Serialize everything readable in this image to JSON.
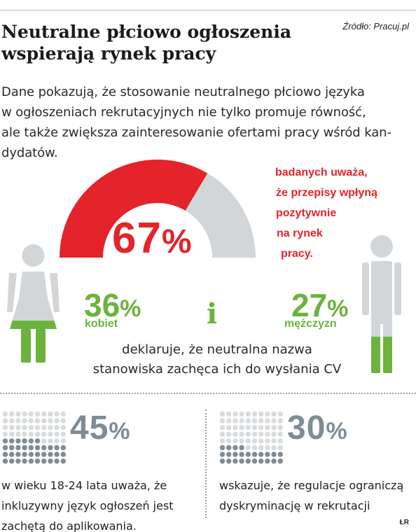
{
  "source": "Źródło: Pracuj.pl",
  "title_lines": [
    "Neutralne płciowo ogłoszenia",
    "wspierają rynek pracy"
  ],
  "intro_lines": [
    "Dane pokazują, że stosowanie neutralnego płciowo języka",
    "w ogłoszeniach rekrutacyjnych nie tylko promuje równość,",
    "ale także zwiększa zainteresowanie ofertami pracy wśród kan-",
    "dydatów."
  ],
  "gauge": {
    "value": 67,
    "number": "67",
    "pct_sign": "%",
    "fill_color": "#e5232a",
    "rest_color": "#d3d6d8",
    "note_lines": [
      "badanych uważa,",
      "że przepisy wpłyną",
      "pozytywnie",
      "na rynek",
      "pracy."
    ]
  },
  "women": {
    "value": 36,
    "number": "36",
    "pct_sign": "%",
    "label": "kobiet",
    "icon": "woman-icon",
    "fill_color": "#6cb33e",
    "body_color": "#d3d6d8"
  },
  "conjunction": "i",
  "men": {
    "value": 27,
    "number": "27",
    "pct_sign": "%",
    "label": "mężczyzn",
    "icon": "man-icon",
    "fill_color": "#6cb33e",
    "body_color": "#d3d6d8"
  },
  "declare_lines": [
    "deklaruje, że neutralna nazwa",
    "stanowiska zachęca ich do wysłania CV"
  ],
  "stat_left": {
    "value": 45,
    "number": "45",
    "pct_sign": "%",
    "icon": "dot-grid-icon",
    "text_lines": [
      "w wieku 18-24 lata uważa, że",
      "inkluzywny język ogłoszeń jest",
      "zachętą do aplikowania."
    ]
  },
  "stat_right": {
    "value": 30,
    "number": "30",
    "pct_sign": "%",
    "icon": "dot-grid-icon",
    "text_lines": [
      "wskazuje, że regulacje ograniczą",
      "dyskryminację w rekrutacji"
    ]
  },
  "colors": {
    "red": "#e5232a",
    "green": "#6cb33e",
    "slate": "#7f8c95",
    "light_gray": "#d3d6d8",
    "dot_light": "#d9dcde"
  },
  "credit": "ŁR"
}
